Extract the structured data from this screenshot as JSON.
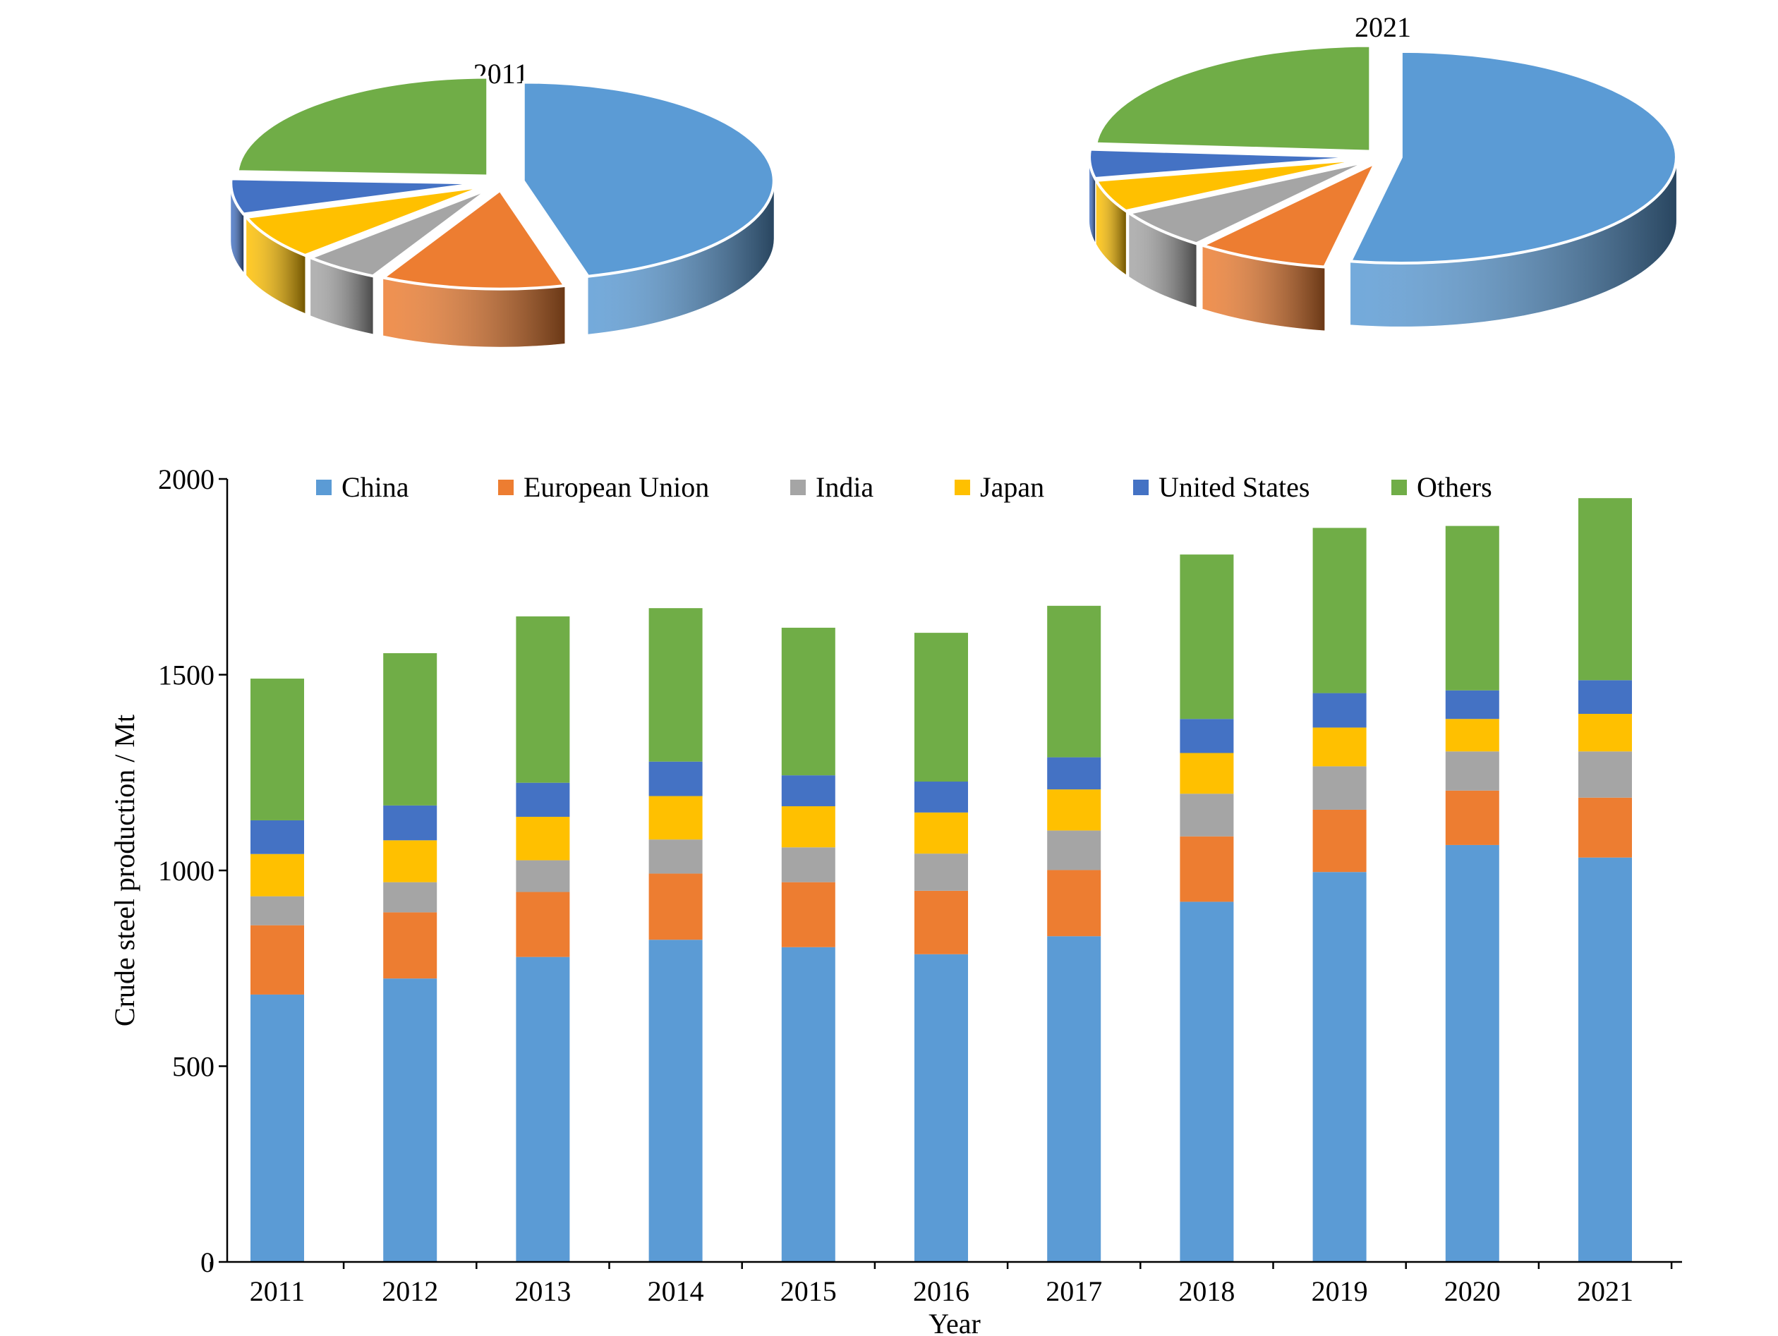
{
  "colors": {
    "China": "#5B9BD5",
    "European Union": "#ED7D31",
    "India": "#A5A5A5",
    "Japan": "#FFC000",
    "United States": "#4472C4",
    "Others": "#70AD47"
  },
  "chart_data": [
    {
      "type": "pie",
      "style": "3d-exploded",
      "title": "2011",
      "labels": [
        "China",
        "European Union",
        "India",
        "Japan",
        "United States",
        "Others"
      ],
      "values": [
        683,
        177,
        74,
        108,
        86,
        362
      ]
    },
    {
      "type": "pie",
      "style": "3d-exploded",
      "title": "2021",
      "labels": [
        "China",
        "European Union",
        "India",
        "Japan",
        "United States",
        "Others"
      ],
      "values": [
        1033,
        153,
        118,
        96,
        86,
        465
      ]
    },
    {
      "type": "bar",
      "stacked": true,
      "title": "",
      "xlabel": "Year",
      "ylabel": "Crude steel production / Mt",
      "ylim": [
        0,
        2000
      ],
      "yticks": [
        "0",
        "500",
        "1000",
        "1500",
        "2000"
      ],
      "categories": [
        "2011",
        "2012",
        "2013",
        "2014",
        "2015",
        "2016",
        "2017",
        "2018",
        "2019",
        "2020",
        "2021"
      ],
      "legend_position": "top",
      "grid": false,
      "series": [
        {
          "name": "China",
          "values": [
            683,
            724,
            779,
            823,
            804,
            786,
            832,
            920,
            996,
            1065,
            1033
          ]
        },
        {
          "name": "European Union",
          "values": [
            177,
            169,
            166,
            169,
            166,
            162,
            169,
            167,
            159,
            139,
            153
          ]
        },
        {
          "name": "India",
          "values": [
            74,
            77,
            81,
            87,
            89,
            95,
            101,
            109,
            111,
            100,
            118
          ]
        },
        {
          "name": "Japan",
          "values": [
            108,
            107,
            111,
            111,
            105,
            105,
            105,
            104,
            99,
            83,
            96
          ]
        },
        {
          "name": "United States",
          "values": [
            86,
            89,
            87,
            88,
            79,
            79,
            82,
            87,
            88,
            73,
            86
          ]
        },
        {
          "name": "Others",
          "values": [
            362,
            389,
            425,
            392,
            377,
            380,
            387,
            420,
            422,
            420,
            465
          ]
        }
      ]
    }
  ]
}
